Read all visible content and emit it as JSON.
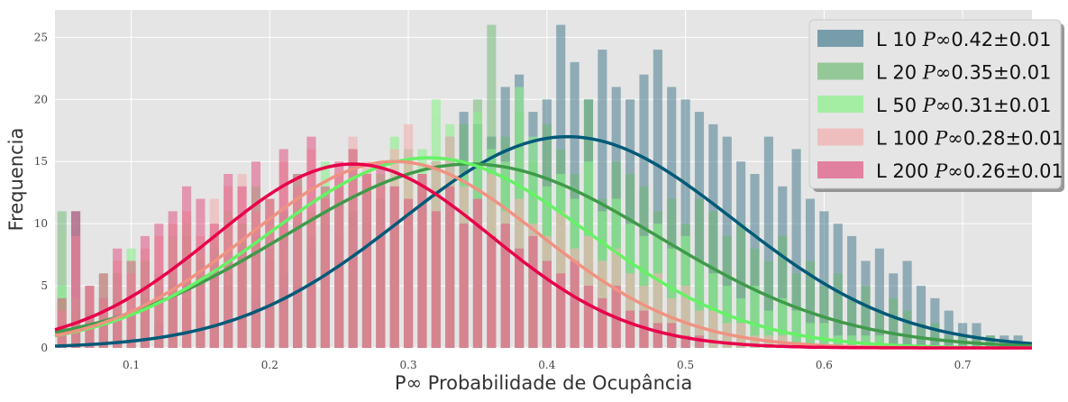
{
  "chart_data": {
    "type": "bar",
    "title": "",
    "xlabel": "P∞ Probabilidade de Ocupância",
    "ylabel": "Frequencia",
    "xlim": [
      0.045,
      0.75
    ],
    "ylim": [
      0,
      27.2
    ],
    "xticks": [
      0.1,
      0.2,
      0.3,
      0.4,
      0.5,
      0.6,
      0.7
    ],
    "xtick_labels": [
      "0.1",
      "0.2",
      "0.3",
      "0.4",
      "0.5",
      "0.6",
      "0.7"
    ],
    "yticks": [
      0,
      5,
      10,
      15,
      20,
      25
    ],
    "ytick_labels": [
      "0",
      "5",
      "10",
      "15",
      "20",
      "25"
    ],
    "grid": true,
    "legend_position": "top-right",
    "background": "#e5e5e5",
    "bin_width": 0.0066,
    "series": [
      {
        "name": "L 10",
        "legend_prefix": "L 10 ",
        "legend_symbol": "P∞",
        "legend_value": "0.42±0.01",
        "hist_color": "#4a7f91",
        "hist_opacity": 0.55,
        "curve_color": "#005a78",
        "mean": 0.415,
        "sd": 0.12,
        "peak": 17.0,
        "hist_x": [
          0.05,
          0.06,
          0.07,
          0.08,
          0.09,
          0.1,
          0.11,
          0.12,
          0.13,
          0.14,
          0.15,
          0.16,
          0.17,
          0.18,
          0.19,
          0.2,
          0.21,
          0.22,
          0.23,
          0.24,
          0.25,
          0.26,
          0.27,
          0.28,
          0.29,
          0.3,
          0.31,
          0.32,
          0.33,
          0.34,
          0.35,
          0.36,
          0.37,
          0.38,
          0.39,
          0.4,
          0.41,
          0.42,
          0.43,
          0.44,
          0.45,
          0.46,
          0.47,
          0.48,
          0.49,
          0.5,
          0.51,
          0.52,
          0.53,
          0.54,
          0.55,
          0.56,
          0.57,
          0.58,
          0.59,
          0.6,
          0.61,
          0.62,
          0.63,
          0.64,
          0.65,
          0.66,
          0.67,
          0.68,
          0.69,
          0.7,
          0.71,
          0.72,
          0.73,
          0.74
        ],
        "hist_y": [
          2,
          11,
          3,
          4,
          2,
          3,
          4,
          2,
          5,
          4,
          3,
          6,
          5,
          8,
          4,
          7,
          6,
          5,
          8,
          10,
          9,
          11,
          10,
          12,
          13,
          11,
          14,
          15,
          17,
          19,
          18,
          17,
          21,
          22,
          19,
          20,
          26,
          23,
          20,
          24,
          21,
          20,
          22,
          24,
          21,
          20,
          19,
          18,
          17,
          15,
          14,
          17,
          13,
          16,
          12,
          11,
          10,
          9,
          7,
          8,
          6,
          7,
          5,
          4,
          3,
          2,
          2,
          1,
          1,
          1
        ]
      },
      {
        "name": "L 20",
        "legend_prefix": "L 20 ",
        "legend_symbol": "P∞",
        "legend_value": "0.35±0.01",
        "hist_color": "#6ab86f",
        "hist_opacity": 0.5,
        "curve_color": "#3f9a4a",
        "mean": 0.345,
        "sd": 0.135,
        "peak": 14.8,
        "hist_x": [
          0.05,
          0.06,
          0.07,
          0.08,
          0.09,
          0.1,
          0.11,
          0.12,
          0.13,
          0.14,
          0.15,
          0.16,
          0.17,
          0.18,
          0.19,
          0.2,
          0.21,
          0.22,
          0.23,
          0.24,
          0.25,
          0.26,
          0.27,
          0.28,
          0.29,
          0.3,
          0.31,
          0.32,
          0.33,
          0.34,
          0.35,
          0.36,
          0.37,
          0.38,
          0.39,
          0.4,
          0.41,
          0.42,
          0.43,
          0.44,
          0.45,
          0.46,
          0.47,
          0.48,
          0.49,
          0.5,
          0.51,
          0.52,
          0.53,
          0.54,
          0.55,
          0.56,
          0.57,
          0.58,
          0.59,
          0.6,
          0.61,
          0.62,
          0.63,
          0.64,
          0.65,
          0.66,
          0.67,
          0.68,
          0.69,
          0.7,
          0.71,
          0.72
        ],
        "hist_y": [
          11,
          3,
          5,
          4,
          6,
          3,
          7,
          5,
          6,
          9,
          7,
          8,
          6,
          10,
          9,
          8,
          11,
          10,
          9,
          12,
          13,
          11,
          14,
          12,
          10,
          16,
          13,
          15,
          14,
          18,
          20,
          26,
          17,
          19,
          15,
          18,
          16,
          14,
          20,
          12,
          15,
          14,
          13,
          11,
          12,
          10,
          12,
          11,
          9,
          10,
          8,
          7,
          9,
          6,
          7,
          5,
          6,
          4,
          5,
          3,
          4,
          3,
          2,
          2,
          1,
          1,
          1,
          1
        ]
      },
      {
        "name": "L 50",
        "legend_prefix": "L 50 ",
        "legend_symbol": "P∞",
        "legend_value": "0.31±0.01",
        "hist_color": "#8ef08e",
        "hist_opacity": 0.6,
        "curve_color": "#66f266",
        "mean": 0.315,
        "sd": 0.115,
        "peak": 15.3,
        "hist_x": [
          0.05,
          0.06,
          0.07,
          0.08,
          0.09,
          0.1,
          0.11,
          0.12,
          0.13,
          0.14,
          0.15,
          0.16,
          0.17,
          0.18,
          0.19,
          0.2,
          0.21,
          0.22,
          0.23,
          0.24,
          0.25,
          0.26,
          0.27,
          0.28,
          0.29,
          0.3,
          0.31,
          0.32,
          0.33,
          0.34,
          0.35,
          0.36,
          0.37,
          0.38,
          0.39,
          0.4,
          0.41,
          0.42,
          0.43,
          0.44,
          0.45,
          0.46,
          0.47,
          0.48,
          0.49,
          0.5,
          0.51,
          0.52,
          0.53,
          0.54,
          0.55,
          0.56,
          0.57,
          0.58,
          0.59,
          0.6,
          0.61,
          0.62,
          0.63,
          0.64
        ],
        "hist_y": [
          5,
          4,
          3,
          6,
          5,
          8,
          7,
          6,
          9,
          10,
          8,
          9,
          11,
          10,
          13,
          12,
          9,
          14,
          11,
          15,
          12,
          16,
          13,
          14,
          17,
          15,
          16,
          20,
          18,
          14,
          19,
          16,
          15,
          21,
          17,
          13,
          14,
          12,
          15,
          11,
          12,
          10,
          9,
          10,
          8,
          9,
          7,
          6,
          5,
          4,
          5,
          3,
          4,
          3,
          2,
          2,
          1,
          1,
          1,
          1
        ]
      },
      {
        "name": "L 100",
        "legend_prefix": "L 100 ",
        "legend_symbol": "P∞",
        "legend_value": "0.28±0.01",
        "hist_color": "#f0b4b4",
        "hist_opacity": 0.65,
        "curve_color": "#f09282",
        "mean": 0.29,
        "sd": 0.105,
        "peak": 15.0,
        "hist_x": [
          0.05,
          0.06,
          0.07,
          0.08,
          0.09,
          0.1,
          0.11,
          0.12,
          0.13,
          0.14,
          0.15,
          0.16,
          0.17,
          0.18,
          0.19,
          0.2,
          0.21,
          0.22,
          0.23,
          0.24,
          0.25,
          0.26,
          0.27,
          0.28,
          0.29,
          0.3,
          0.31,
          0.32,
          0.33,
          0.34,
          0.35,
          0.36,
          0.37,
          0.38,
          0.39,
          0.4,
          0.41,
          0.42,
          0.43,
          0.44,
          0.45,
          0.46,
          0.47,
          0.48,
          0.49,
          0.5,
          0.51,
          0.52,
          0.53,
          0.54,
          0.55,
          0.56,
          0.57
        ],
        "hist_y": [
          3,
          9,
          5,
          4,
          7,
          6,
          8,
          9,
          10,
          11,
          9,
          12,
          13,
          14,
          11,
          12,
          15,
          13,
          16,
          12,
          14,
          17,
          15,
          13,
          16,
          18,
          14,
          15,
          17,
          13,
          12,
          14,
          11,
          12,
          10,
          9,
          11,
          8,
          9,
          7,
          8,
          6,
          5,
          6,
          4,
          5,
          3,
          3,
          2,
          2,
          1,
          1,
          1
        ]
      },
      {
        "name": "L 200",
        "legend_prefix": "L 200 ",
        "legend_symbol": "P∞",
        "legend_value": "0.26±0.01",
        "hist_color": "#e04a7a",
        "hist_opacity": 0.5,
        "curve_color": "#e8004a",
        "mean": 0.26,
        "sd": 0.1,
        "peak": 14.8,
        "hist_x": [
          0.05,
          0.06,
          0.07,
          0.08,
          0.09,
          0.1,
          0.11,
          0.12,
          0.13,
          0.14,
          0.15,
          0.16,
          0.17,
          0.18,
          0.19,
          0.2,
          0.21,
          0.22,
          0.23,
          0.24,
          0.25,
          0.26,
          0.27,
          0.28,
          0.29,
          0.3,
          0.31,
          0.32,
          0.33,
          0.34,
          0.35,
          0.36,
          0.37,
          0.38,
          0.39,
          0.4,
          0.41,
          0.42,
          0.43,
          0.44,
          0.45,
          0.46,
          0.47,
          0.48,
          0.49,
          0.5,
          0.51
        ],
        "hist_y": [
          4,
          11,
          5,
          6,
          8,
          7,
          9,
          10,
          11,
          13,
          12,
          10,
          14,
          13,
          15,
          12,
          16,
          14,
          17,
          13,
          15,
          16,
          14,
          15,
          13,
          12,
          14,
          11,
          13,
          10,
          12,
          9,
          10,
          8,
          9,
          7,
          6,
          7,
          5,
          4,
          5,
          3,
          3,
          2,
          2,
          1,
          1
        ]
      }
    ]
  }
}
